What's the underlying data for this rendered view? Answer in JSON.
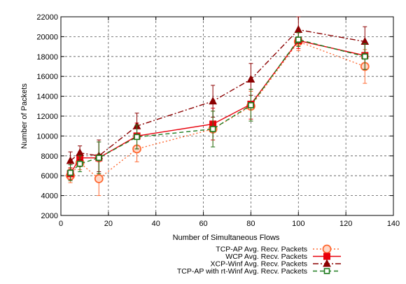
{
  "chart_data": {
    "type": "line",
    "title": "",
    "xlabel": "Number of Simultaneous Flows",
    "ylabel": "Number of Packets",
    "xlim": [
      0,
      140
    ],
    "ylim": [
      2000,
      22000
    ],
    "xticks": [
      0,
      20,
      40,
      60,
      80,
      100,
      120,
      140
    ],
    "yticks": [
      2000,
      4000,
      6000,
      8000,
      10000,
      12000,
      14000,
      16000,
      18000,
      20000,
      22000
    ],
    "grid": true,
    "legend_position": "bottom-right",
    "x": [
      4,
      8,
      16,
      32,
      64,
      80,
      100,
      128
    ],
    "series": [
      {
        "name": "TCP-AP Avg. Recv. Packets",
        "color": "#ff6a33",
        "style": "dotted",
        "marker": "circle-open",
        "values": [
          6000,
          7300,
          5700,
          8700,
          10700,
          13000,
          19500,
          17000
        ],
        "errors": [
          700,
          700,
          1700,
          1300,
          1800,
          1500,
          900,
          1700
        ]
      },
      {
        "name": "WCP Avg. Recv. Packets",
        "color": "#e8000b",
        "style": "solid",
        "marker": "square-filled",
        "values": [
          6200,
          7800,
          7800,
          10000,
          11200,
          13200,
          19600,
          18100
        ],
        "errors": [
          600,
          600,
          1600,
          1300,
          1600,
          1500,
          800,
          1400
        ]
      },
      {
        "name": "XCP-Winf Avg. Recv. Packets",
        "color": "#8b0000",
        "style": "dashdot",
        "marker": "triangle-filled",
        "values": [
          7500,
          8300,
          8000,
          11000,
          13500,
          15700,
          20700,
          19500
        ],
        "errors": [
          900,
          700,
          1600,
          1300,
          1600,
          1600,
          1300,
          1500
        ]
      },
      {
        "name": "TCP-AP with rt-Winf Avg. Recv. Packets",
        "color": "#1e7b1e",
        "style": "dashed",
        "marker": "square-open",
        "values": [
          6300,
          7200,
          7800,
          9900,
          10700,
          13100,
          19700,
          18000
        ],
        "errors": [
          800,
          800,
          1600,
          1200,
          1800,
          1600,
          700,
          1300
        ]
      }
    ]
  }
}
